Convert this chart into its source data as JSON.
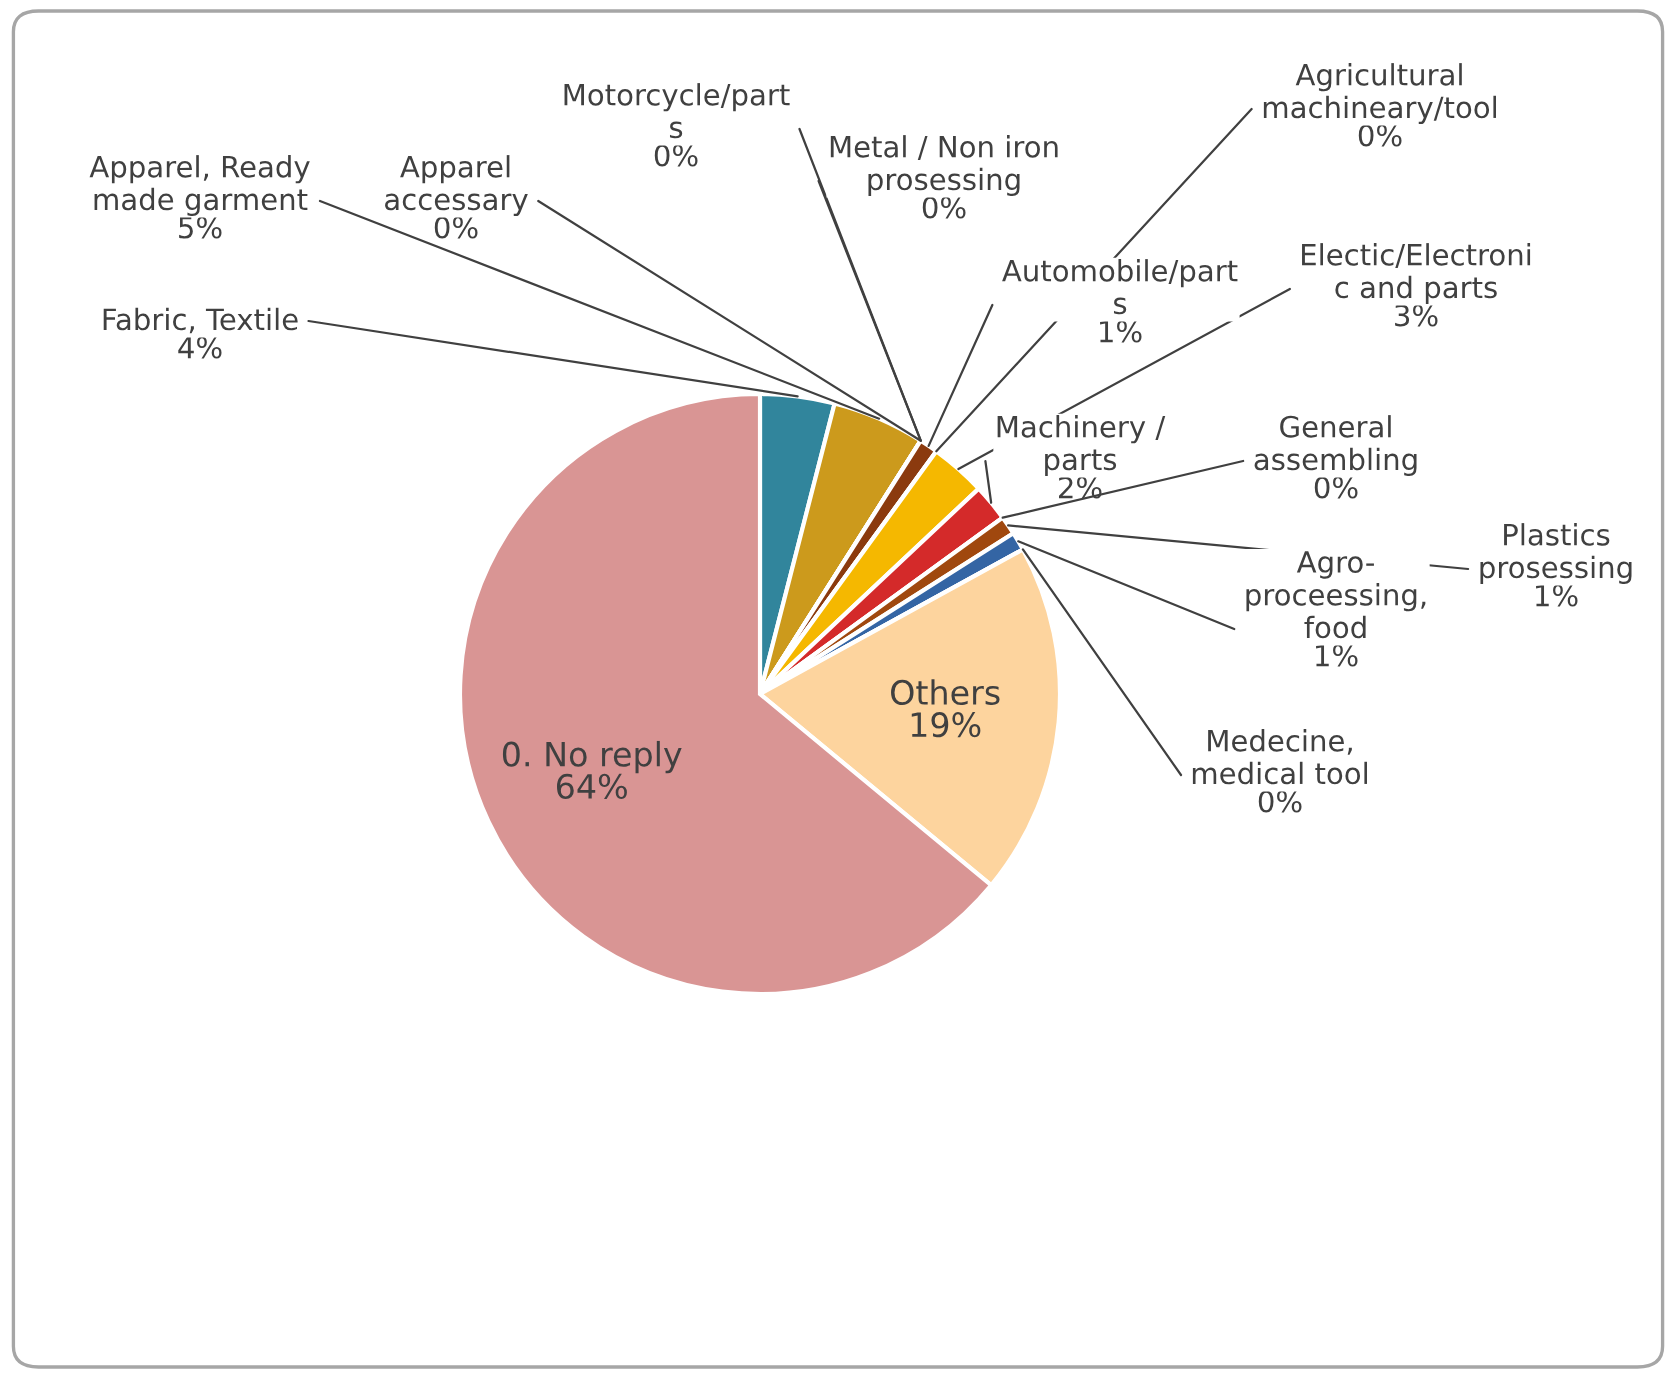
{
  "chart_data": {
    "type": "pie",
    "categories": [
      "Fabric, Textile",
      "Apparel, Ready\nmade garment",
      "Apparel\naccessary",
      "Motorcycle/part\ns",
      "Metal / Non iron\nprosessing",
      "Automobile/part\ns",
      "Agricultural\nmachineary/tool",
      "Electic/Electroni\nc and parts",
      "Machinery /\nparts",
      "General\nassembling",
      "Plastics\nprosessing",
      "Agro-\nproceessing,\nfood",
      "Medecine,\nmedical tool",
      "Others",
      "0. No reply"
    ],
    "values": [
      4,
      5,
      0,
      0,
      0,
      1,
      0,
      3,
      2,
      0,
      1,
      1,
      0,
      19,
      64
    ],
    "value_labels": [
      "4%",
      "5%",
      "0%",
      "0%",
      "0%",
      "1%",
      "0%",
      "3%",
      "2%",
      "0%",
      "1%",
      "1%",
      "0%",
      "19%",
      "64%"
    ],
    "colors": [
      "#31859c",
      "#cc9a1c",
      "#7f7f7f",
      "#7f7f7f",
      "#7f7f7f",
      "#8b3a0e",
      "#7f7f7f",
      "#f5b800",
      "#d42a2a",
      "#7f7f7f",
      "#a0480e",
      "#3465a4",
      "#7f7f7f",
      "#fdd49e",
      "#d99594"
    ]
  }
}
